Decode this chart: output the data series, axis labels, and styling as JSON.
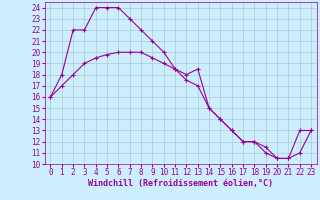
{
  "xlabel": "Windchill (Refroidissement éolien,°C)",
  "bg_color": "#cceeff",
  "line_color": "#990099",
  "grid_color": "#aacccc",
  "xlim": [
    -0.5,
    23.5
  ],
  "ylim": [
    10,
    24.5
  ],
  "xticks": [
    0,
    1,
    2,
    3,
    4,
    5,
    6,
    7,
    8,
    9,
    10,
    11,
    12,
    13,
    14,
    15,
    16,
    17,
    18,
    19,
    20,
    21,
    22,
    23
  ],
  "yticks": [
    10,
    11,
    12,
    13,
    14,
    15,
    16,
    17,
    18,
    19,
    20,
    21,
    22,
    23,
    24
  ],
  "series1_x": [
    0,
    1,
    2,
    3,
    4,
    5,
    6,
    7,
    8,
    9,
    10,
    11,
    12,
    13,
    14,
    15,
    16,
    17,
    18,
    19,
    20,
    21,
    22,
    23
  ],
  "series1_y": [
    16,
    18,
    22,
    22,
    24,
    24,
    24,
    23,
    22,
    21,
    20,
    18.5,
    18,
    18.5,
    15,
    14,
    13,
    12,
    12,
    11,
    10.5,
    10.5,
    13,
    13
  ],
  "series2_x": [
    0,
    1,
    2,
    3,
    4,
    5,
    6,
    7,
    8,
    9,
    10,
    11,
    12,
    13,
    14,
    15,
    16,
    17,
    18,
    19,
    20,
    21,
    22,
    23
  ],
  "series2_y": [
    16,
    17,
    18,
    19,
    19.5,
    19.8,
    20,
    20,
    20,
    19.5,
    19,
    18.5,
    17.5,
    17,
    15,
    14,
    13,
    12,
    12,
    11.5,
    10.5,
    10.5,
    11,
    13
  ],
  "tick_fontsize": 5.5,
  "xlabel_fontsize": 6.0,
  "tick_color": "#990099",
  "xlabel_color": "#990099"
}
